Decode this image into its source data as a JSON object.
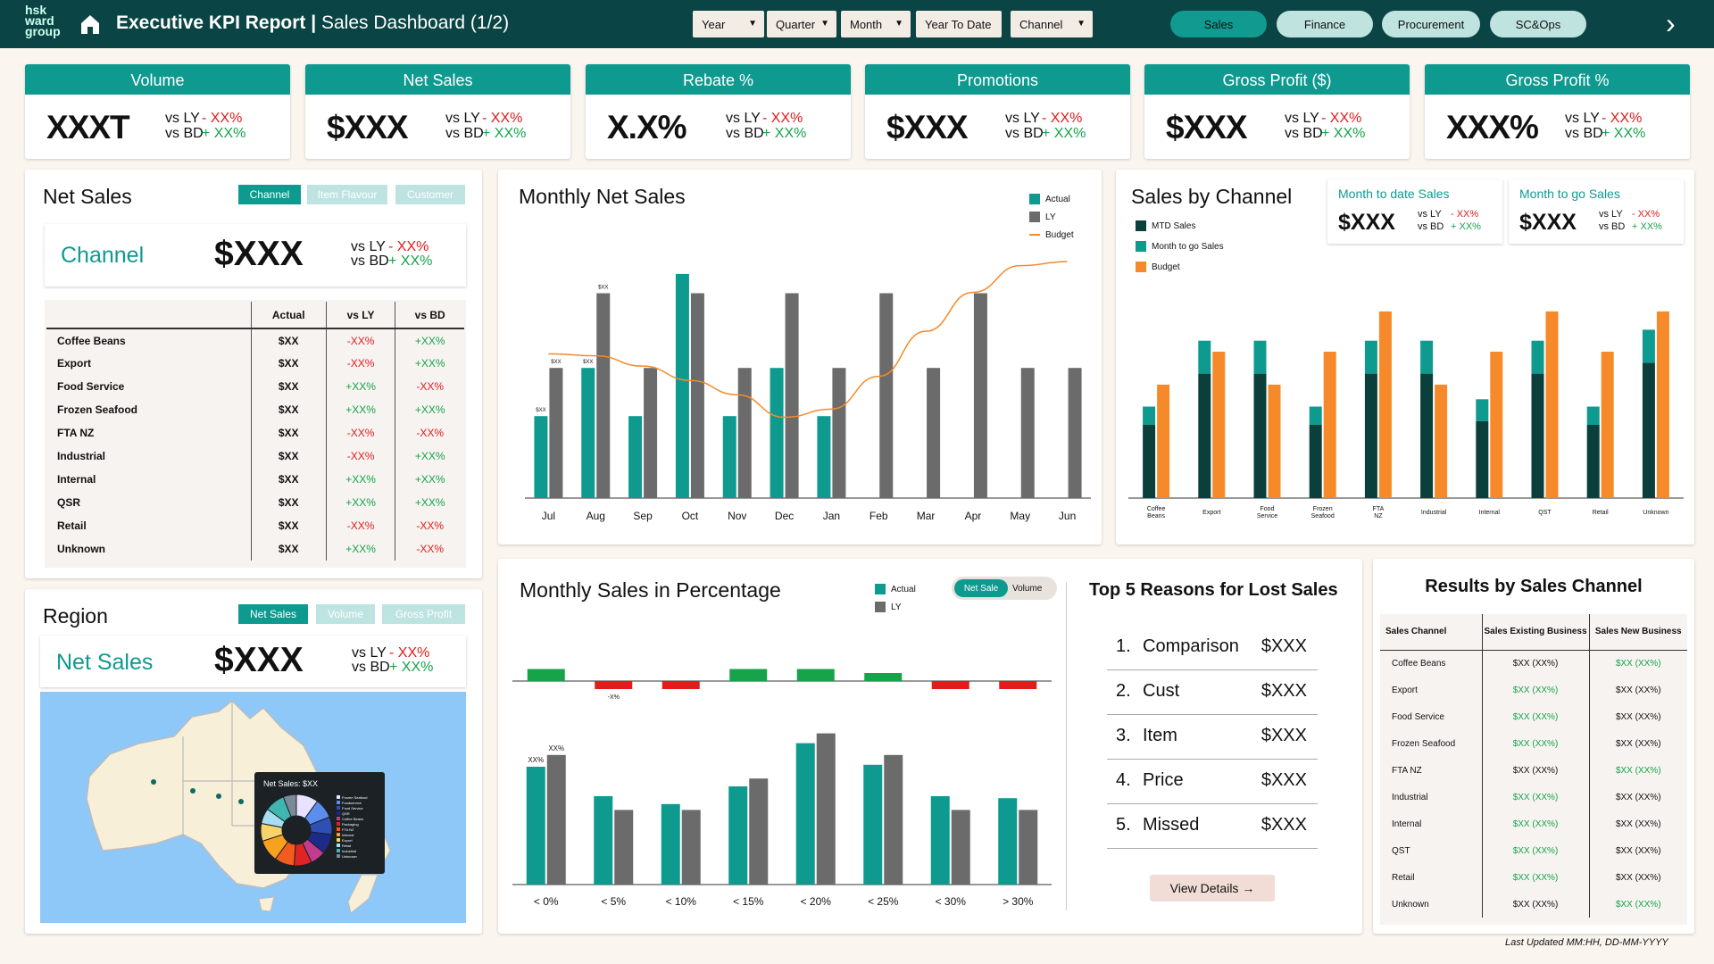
{
  "header": {
    "logo_lines": [
      "hsk",
      "ward",
      "group"
    ],
    "title": "Executive KPI Report",
    "separator": "|",
    "subtitle": "Sales Dashboard (1/2)",
    "filters": [
      "Year",
      "Quarter",
      "Month",
      "Year To Date",
      "Channel"
    ],
    "tabs": [
      "Sales",
      "Finance",
      "Procurement",
      "SC&Ops"
    ],
    "active_tab": "Sales"
  },
  "kpis": [
    {
      "title": "Volume",
      "value": "XXXT",
      "vs_ly": "vs LY",
      "vs_bd": "vs BD",
      "ly_delta": "- XX%",
      "bd_delta": "+ XX%"
    },
    {
      "title": "Net Sales",
      "value": "$XXX",
      "vs_ly": "vs LY",
      "vs_bd": "vs BD",
      "ly_delta": "- XX%",
      "bd_delta": "+ XX%"
    },
    {
      "title": "Rebate %",
      "value": "X.X%",
      "vs_ly": "vs LY",
      "vs_bd": "vs BD",
      "ly_delta": "- XX%",
      "bd_delta": "+ XX%"
    },
    {
      "title": "Promotions",
      "value": "$XXX",
      "vs_ly": "vs LY",
      "vs_bd": "vs BD",
      "ly_delta": "- XX%",
      "bd_delta": "+ XX%"
    },
    {
      "title": "Gross Profit ($)",
      "value": "$XXX",
      "vs_ly": "vs LY",
      "vs_bd": "vs BD",
      "ly_delta": "- XX%",
      "bd_delta": "+ XX%"
    },
    {
      "title": "Gross Profit %",
      "value": "XXX%",
      "vs_ly": "vs LY",
      "vs_bd": "vs BD",
      "ly_delta": "- XX%",
      "bd_delta": "+ XX%"
    }
  ],
  "net_sales": {
    "title": "Net Sales",
    "toggles": [
      "Channel",
      "Item Flavour",
      "Customer"
    ],
    "summary_label": "Channel",
    "summary_value": "$XXX",
    "vs_ly": "vs LY",
    "vs_bd": "vs BD",
    "ly_delta": "- XX%",
    "bd_delta": "+ XX%",
    "columns": [
      "",
      "Actual",
      "vs LY",
      "vs BD"
    ],
    "rows": [
      {
        "name": "Coffee Beans",
        "actual": "$XX",
        "ly": "-XX%",
        "bd": "+XX%"
      },
      {
        "name": "Export",
        "actual": "$XX",
        "ly": "-XX%",
        "bd": "+XX%"
      },
      {
        "name": "Food Service",
        "actual": "$XX",
        "ly": "+XX%",
        "bd": "-XX%"
      },
      {
        "name": "Frozen Seafood",
        "actual": "$XX",
        "ly": "+XX%",
        "bd": "+XX%"
      },
      {
        "name": "FTA NZ",
        "actual": "$XX",
        "ly": "-XX%",
        "bd": "-XX%"
      },
      {
        "name": "Industrial",
        "actual": "$XX",
        "ly": "-XX%",
        "bd": "+XX%"
      },
      {
        "name": "Internal",
        "actual": "$XX",
        "ly": "+XX%",
        "bd": "+XX%"
      },
      {
        "name": "QSR",
        "actual": "$XX",
        "ly": "+XX%",
        "bd": "+XX%"
      },
      {
        "name": "Retail",
        "actual": "$XX",
        "ly": "-XX%",
        "bd": "-XX%"
      },
      {
        "name": "Unknown",
        "actual": "$XX",
        "ly": "+XX%",
        "bd": "-XX%"
      }
    ]
  },
  "region": {
    "title": "Region",
    "toggles": [
      "Net Sales",
      "Volume",
      "Gross Profit"
    ],
    "summary_label": "Net Sales",
    "summary_value": "$XXX",
    "vs_ly": "vs LY",
    "vs_bd": "vs BD",
    "ly_delta": "- XX%",
    "bd_delta": "+ XX%",
    "tooltip_title": "Net Sales: $XX",
    "tooltip_legend": [
      "Frozen Seafood",
      "Foodservice",
      "Food Service",
      "QSR",
      "Coffee Beans",
      "Packaging",
      "FTA NZ",
      "Internal",
      "Export",
      "Retail",
      "Industrial",
      "Unknown"
    ]
  },
  "monthly_net_sales": {
    "title": "Monthly Net Sales",
    "legend": [
      "Actual",
      "LY",
      "Budget"
    ]
  },
  "sales_by_channel": {
    "title": "Sales by Channel",
    "legend": [
      "MTD Sales",
      "Month to go Sales",
      "Budget"
    ],
    "mtd": {
      "title": "Month to date Sales",
      "value": "$XXX",
      "vs_ly": "vs LY",
      "vs_bd": "vs BD",
      "ly_delta": "- XX%",
      "bd_delta": "+ XX%"
    },
    "mtg": {
      "title": "Month to go Sales",
      "value": "$XXX",
      "vs_ly": "vs LY",
      "vs_bd": "vs BD",
      "ly_delta": "- XX%",
      "bd_delta": "+ XX%"
    }
  },
  "monthly_pct": {
    "title": "Monthly Sales in Percentage",
    "legend": [
      "Actual",
      "LY"
    ],
    "switch": [
      "Net Sale",
      "Volume"
    ]
  },
  "lost_sales": {
    "title": "Top 5 Reasons for Lost Sales",
    "items": [
      {
        "rank": "1.",
        "name": "Comparison",
        "value": "$XXX"
      },
      {
        "rank": "2.",
        "name": "Cust",
        "value": "$XXX"
      },
      {
        "rank": "3.",
        "name": "Item",
        "value": "$XXX"
      },
      {
        "rank": "4.",
        "name": "Price",
        "value": "$XXX"
      },
      {
        "rank": "5.",
        "name": "Missed",
        "value": "$XXX"
      }
    ],
    "button": "View Details →"
  },
  "results_channel": {
    "title": "Results by Sales Channel",
    "columns": [
      "Sales Channel",
      "Sales Existing Business",
      "Sales New Business"
    ],
    "rows": [
      {
        "name": "Coffee Beans",
        "existing": "$XX (XX%)",
        "new": "$XX (XX%)",
        "ex_green": false,
        "new_green": true
      },
      {
        "name": "Export",
        "existing": "$XX (XX%)",
        "new": "$XX (XX%)",
        "ex_green": true,
        "new_green": false
      },
      {
        "name": "Food Service",
        "existing": "$XX (XX%)",
        "new": "$XX (XX%)",
        "ex_green": true,
        "new_green": false
      },
      {
        "name": "Frozen Seafood",
        "existing": "$XX (XX%)",
        "new": "$XX (XX%)",
        "ex_green": true,
        "new_green": false
      },
      {
        "name": "FTA NZ",
        "existing": "$XX (XX%)",
        "new": "$XX (XX%)",
        "ex_green": false,
        "new_green": true
      },
      {
        "name": "Industrial",
        "existing": "$XX (XX%)",
        "new": "$XX (XX%)",
        "ex_green": true,
        "new_green": false
      },
      {
        "name": "Internal",
        "existing": "$XX (XX%)",
        "new": "$XX (XX%)",
        "ex_green": true,
        "new_green": false
      },
      {
        "name": "QST",
        "existing": "$XX (XX%)",
        "new": "$XX (XX%)",
        "ex_green": true,
        "new_green": false
      },
      {
        "name": "Retail",
        "existing": "$XX (XX%)",
        "new": "$XX (XX%)",
        "ex_green": true,
        "new_green": false
      },
      {
        "name": "Unknown",
        "existing": "$XX (XX%)",
        "new": "$XX (XX%)",
        "ex_green": false,
        "new_green": true
      }
    ]
  },
  "footer": {
    "last_updated": "Last Updated MM:HH, DD-MM-YYYY"
  },
  "colors": {
    "teal": "#0f9a90",
    "grey": "#6b6b6b",
    "dark_teal": "#0b3f3b",
    "orange": "#f68a2a",
    "red": "#e21b1b",
    "green": "#16a34a"
  },
  "chart_data": [
    {
      "type": "bar",
      "name_ref": "monthly_net_sales",
      "categories": [
        "Jul",
        "Aug",
        "Sep",
        "Oct",
        "Nov",
        "Dec",
        "Jan",
        "Feb",
        "Mar",
        "Apr",
        "May",
        "Jun"
      ],
      "series": [
        {
          "name": "Actual",
          "values": [
            34,
            54,
            34,
            93,
            34,
            54,
            34,
            0,
            0,
            0,
            0,
            0
          ]
        },
        {
          "name": "LY",
          "values": [
            54,
            85,
            54,
            85,
            54,
            85,
            54,
            85,
            54,
            85,
            54,
            54
          ]
        },
        {
          "name": "Budget",
          "type": "line",
          "values": [
            53,
            52,
            47,
            40,
            33,
            22,
            26,
            42,
            64,
            83,
            96,
            98
          ]
        }
      ],
      "data_labels": [
        "$XX",
        "$XX",
        "$XX",
        "$XX"
      ],
      "ylim": [
        0,
        100
      ]
    },
    {
      "type": "bar",
      "name_ref": "sales_by_channel",
      "categories": [
        "Coffee Beans",
        "Export",
        "Food Service",
        "Frozen Seafood",
        "FTA NZ",
        "Industrial",
        "Internal",
        "QST",
        "Retail",
        "Unknown"
      ],
      "series": [
        {
          "name": "MTD Sales",
          "values": [
            20,
            34,
            34,
            20,
            34,
            34,
            21,
            34,
            20,
            37
          ]
        },
        {
          "name": "Month to go Sales",
          "values": [
            5,
            9,
            9,
            5,
            9,
            9,
            6,
            9,
            5,
            9
          ]
        },
        {
          "name": "Budget",
          "values": [
            31,
            40,
            31,
            40,
            51,
            31,
            40,
            51,
            40,
            51
          ]
        }
      ],
      "ylim": [
        0,
        60
      ]
    },
    {
      "type": "bar",
      "name_ref": "monthly_pct_top",
      "categories": [
        "< 0%",
        "< 5%",
        "< 10%",
        "< 15%",
        "< 20%",
        "< 25%",
        "< 30%",
        "> 30%"
      ],
      "series": [
        {
          "name": "Difference",
          "values": [
            3,
            -2,
            -2,
            3,
            3,
            2,
            -2,
            -2
          ]
        }
      ],
      "data_labels": [
        "-X%"
      ],
      "ylim": [
        -3,
        3
      ]
    },
    {
      "type": "bar",
      "name_ref": "monthly_pct_bottom",
      "categories": [
        "< 0%",
        "< 5%",
        "< 10%",
        "< 15%",
        "< 20%",
        "< 25%",
        "< 30%",
        "> 30%"
      ],
      "series": [
        {
          "name": "Actual",
          "values": [
            60,
            45,
            41,
            50,
            72,
            61,
            45,
            44
          ]
        },
        {
          "name": "LY",
          "values": [
            66,
            38,
            38,
            54,
            77,
            66,
            38,
            38
          ]
        }
      ],
      "data_labels": [
        "XX%",
        "XX%"
      ],
      "ylim": [
        0,
        80
      ]
    }
  ]
}
